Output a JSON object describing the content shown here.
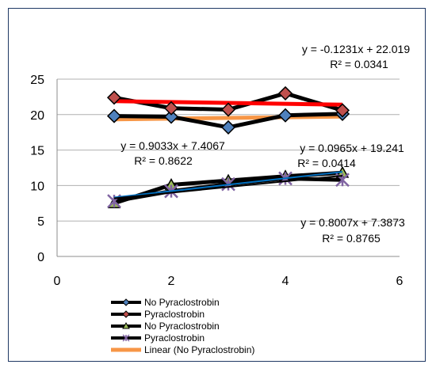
{
  "chart_data": {
    "type": "scatter",
    "title": "",
    "xlabel": "",
    "ylabel": "",
    "xlim": [
      0,
      6
    ],
    "ylim": [
      0,
      25
    ],
    "x_ticks": [
      "0",
      "2",
      "4",
      "6"
    ],
    "y_ticks": [
      "0",
      "5",
      "10",
      "15",
      "20",
      "25"
    ],
    "grid": "horizontal",
    "legend_position": "bottom",
    "series": [
      {
        "name": "No Pyraclostrobin",
        "marker": "diamond",
        "marker_color": "#4f81bd",
        "line_color": "#000000",
        "x": [
          1,
          2,
          3,
          4,
          5
        ],
        "y": [
          19.8,
          19.7,
          18.2,
          19.9,
          20.1
        ]
      },
      {
        "name": "Pyraclostrobin",
        "marker": "diamond",
        "marker_color": "#c0504d",
        "line_color": "#000000",
        "x": [
          1,
          2,
          3,
          4,
          5
        ],
        "y": [
          22.4,
          20.9,
          20.7,
          23.0,
          20.6
        ]
      },
      {
        "name": "No Pyraclostrobin",
        "marker": "triangle",
        "marker_color": "#9bbb59",
        "line_color": "#000000",
        "x": [
          1,
          2,
          3,
          4,
          5
        ],
        "y": [
          7.5,
          10.1,
          10.7,
          11.3,
          11.8
        ]
      },
      {
        "name": "Pyraclostrobin",
        "marker": "star",
        "marker_color": "#8064a2",
        "line_color": "#000000",
        "x": [
          1,
          2,
          3,
          4,
          5
        ],
        "y": [
          7.8,
          9.2,
          10.2,
          11.0,
          10.8
        ]
      }
    ],
    "trendlines": [
      {
        "name": "Linear (No Pyraclostrobin)",
        "color": "#f79646",
        "slope": 0.0965,
        "intercept": 19.241,
        "equation": "y = 0.0965x + 19.241",
        "r2": "R² = 0.0414"
      },
      {
        "name": "",
        "color": "#ff0000",
        "slope": -0.1231,
        "intercept": 22.019,
        "equation": "y = -0.1231x + 22.019",
        "r2": "R² = 0.0341"
      },
      {
        "name": "",
        "color": "#0070c0",
        "slope": 0.9033,
        "intercept": 7.4067,
        "equation": "y = 0.9033x + 7.4067",
        "r2": "R² = 0.8622"
      },
      {
        "name": "",
        "color": "#000000",
        "slope": 0.8007,
        "intercept": 7.3873,
        "equation": "y = 0.8007x + 7.3873",
        "r2": "R² = 0.8765"
      }
    ],
    "legend": [
      {
        "label": "No Pyraclostrobin",
        "marker": "diamond",
        "marker_color": "#4f81bd",
        "line_color": "#000000"
      },
      {
        "label": "Pyraclostrobin",
        "marker": "diamond",
        "marker_color": "#c0504d",
        "line_color": "#000000"
      },
      {
        "label": "No Pyraclostrobin",
        "marker": "triangle",
        "marker_color": "#9bbb59",
        "line_color": "#000000"
      },
      {
        "label": "Pyraclostrobin",
        "marker": "star",
        "marker_color": "#8064a2",
        "line_color": "#000000"
      },
      {
        "label": "Linear (No Pyraclostrobin)",
        "marker": "none",
        "marker_color": "",
        "line_color": "#f79646"
      }
    ]
  }
}
